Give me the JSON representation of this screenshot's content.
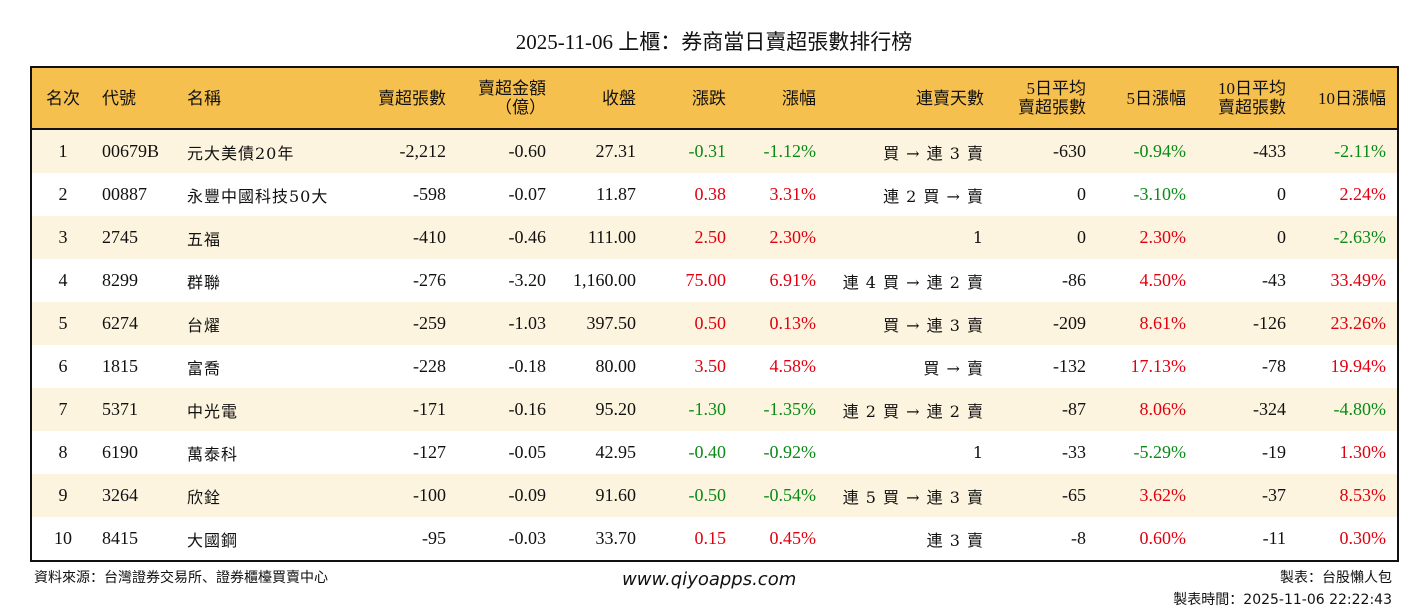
{
  "title": "2025-11-06 上櫃：券商當日賣超張數排行榜",
  "colors": {
    "header_bg": "#f6c04e",
    "stripe": "#fdf4df",
    "up": "#e0000f",
    "down": "#0a8a16"
  },
  "headers": [
    "名次",
    "代號",
    "名稱",
    "賣超張數",
    "賣超金額\n（億）",
    "收盤",
    "漲跌",
    "漲幅",
    "連賣天數",
    "5日平均\n賣超張數",
    "5日漲幅",
    "10日平均\n賣超張數",
    "10日漲幅"
  ],
  "rows": [
    [
      "1",
      "00679B",
      "元大美債20年",
      "-2,212",
      "-0.60",
      "27.31",
      "-0.31",
      "-1.12%",
      "買 → 連 3 賣",
      "-630",
      "-0.94%",
      "-433",
      "-2.11%"
    ],
    [
      "2",
      "00887",
      "永豐中國科技50大",
      "-598",
      "-0.07",
      "11.87",
      "0.38",
      "3.31%",
      "連 2 買 → 賣",
      "0",
      "-3.10%",
      "0",
      "2.24%"
    ],
    [
      "3",
      "2745",
      "五福",
      "-410",
      "-0.46",
      "111.00",
      "2.50",
      "2.30%",
      "1",
      "0",
      "2.30%",
      "0",
      "-2.63%"
    ],
    [
      "4",
      "8299",
      "群聯",
      "-276",
      "-3.20",
      "1,160.00",
      "75.00",
      "6.91%",
      "連 4 買 → 連 2 賣",
      "-86",
      "4.50%",
      "-43",
      "33.49%"
    ],
    [
      "5",
      "6274",
      "台燿",
      "-259",
      "-1.03",
      "397.50",
      "0.50",
      "0.13%",
      "買 → 連 3 賣",
      "-209",
      "8.61%",
      "-126",
      "23.26%"
    ],
    [
      "6",
      "1815",
      "富喬",
      "-228",
      "-0.18",
      "80.00",
      "3.50",
      "4.58%",
      "買 → 賣",
      "-132",
      "17.13%",
      "-78",
      "19.94%"
    ],
    [
      "7",
      "5371",
      "中光電",
      "-171",
      "-0.16",
      "95.20",
      "-1.30",
      "-1.35%",
      "連 2 買 → 連 2 賣",
      "-87",
      "8.06%",
      "-324",
      "-4.80%"
    ],
    [
      "8",
      "6190",
      "萬泰科",
      "-127",
      "-0.05",
      "42.95",
      "-0.40",
      "-0.92%",
      "1",
      "-33",
      "-5.29%",
      "-19",
      "1.30%"
    ],
    [
      "9",
      "3264",
      "欣銓",
      "-100",
      "-0.09",
      "91.60",
      "-0.50",
      "-0.54%",
      "連 5 買 → 連 3 賣",
      "-65",
      "3.62%",
      "-37",
      "8.53%"
    ],
    [
      "10",
      "8415",
      "大國鋼",
      "-95",
      "-0.03",
      "33.70",
      "0.15",
      "0.45%",
      "連 3 賣",
      "-8",
      "0.60%",
      "-11",
      "0.30%"
    ]
  ],
  "footer": {
    "source": "資料來源：台灣證券交易所、證券櫃檯買賣中心",
    "website": "www.qiyoapps.com",
    "maker": "製表：台股懶人包",
    "time": "製表時間：2025-11-06 22:22:43"
  }
}
